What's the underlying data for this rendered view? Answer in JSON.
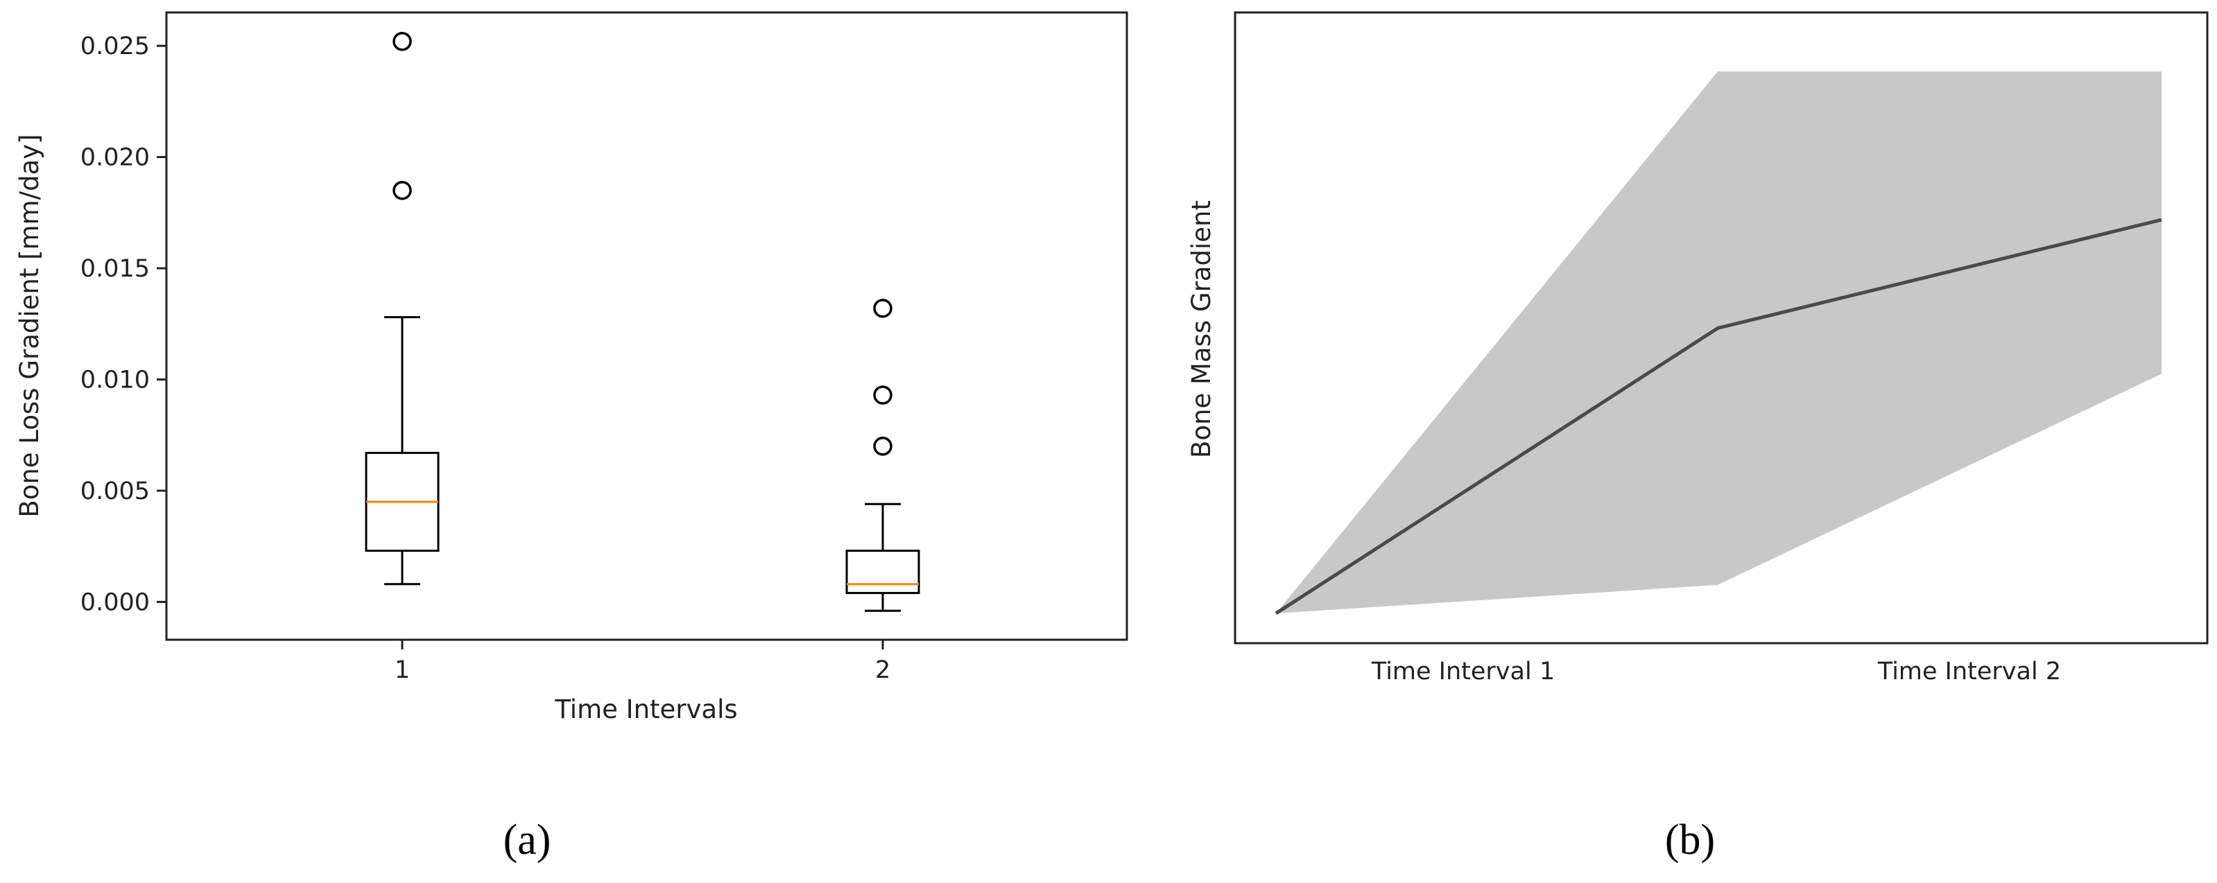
{
  "chart_data": [
    {
      "type": "box",
      "panel_label": "(a)",
      "xlabel": "Time Intervals",
      "ylabel": "Bone Loss Gradient [mm/day]",
      "categories": [
        "1",
        "2"
      ],
      "ylim": [
        -0.0017,
        0.0265
      ],
      "yticks": [
        "0.000",
        "0.005",
        "0.010",
        "0.015",
        "0.020",
        "0.025"
      ],
      "ytick_values": [
        0,
        0.005,
        0.01,
        0.015,
        0.02,
        0.025
      ],
      "boxes": [
        {
          "category": "1",
          "whisker_low": 0.0008,
          "q1": 0.0023,
          "median": 0.0045,
          "q3": 0.0067,
          "whisker_high": 0.0128,
          "outliers": [
            0.0185,
            0.0252
          ]
        },
        {
          "category": "2",
          "whisker_low": -0.0004,
          "q1": 0.0004,
          "median": 0.0008,
          "q3": 0.0023,
          "whisker_high": 0.0044,
          "outliers": [
            0.007,
            0.0093,
            0.0132
          ]
        }
      ],
      "colors": {
        "box": "#000000",
        "median": "#ff7f0e"
      },
      "grid": false
    },
    {
      "type": "line",
      "panel_label": "(b)",
      "ylabel": "Bone Mass Gradient",
      "categories": [
        "Time Interval 1",
        "Time Interval 2"
      ],
      "x": [
        0,
        1,
        2
      ],
      "series": [
        {
          "values": [
            0.0,
            0.5,
            0.69
          ],
          "lower": [
            0.0,
            0.05,
            0.42
          ],
          "upper": [
            0.0,
            0.95,
            0.95
          ]
        }
      ],
      "yticks_visible": false,
      "colors": {
        "line": "#4a4a4a",
        "band": "#c8c8c8"
      },
      "grid": false
    }
  ]
}
